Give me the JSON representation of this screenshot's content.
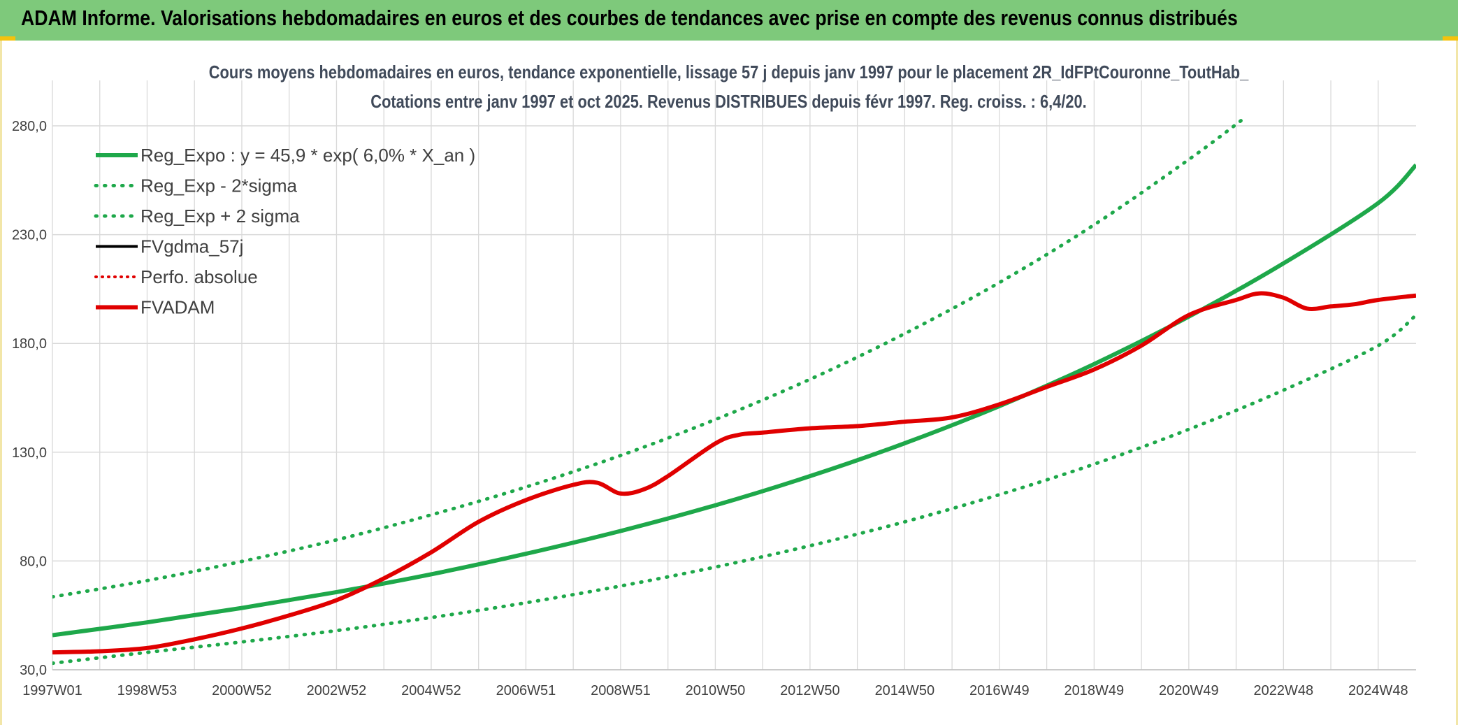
{
  "header": {
    "title": "ADAM Informe. Valorisations hebdomadaires en euros et des courbes de tendances avec prise en compte des revenus connus distribués"
  },
  "colors": {
    "header_bg": "#7ec97b",
    "reg_expo": "#1ea84a",
    "sigma_bands": "#1ea84a",
    "fvgdma": "#000000",
    "perfo_absolue": "#e00000",
    "fvadam": "#e00000",
    "grid": "#d9d9d9"
  },
  "chart_data": {
    "type": "line",
    "title": "Cours moyens hebdomadaires en euros, tendance exponentielle, lissage 57 j depuis janv 1997 pour le placement 2R_IdFPtCouronne_ToutHab_",
    "subtitle": "Cotations entre janv 1997 et oct 2025. Revenus DISTRIBUES depuis févr 1997. Reg. croiss. : 6,4/20.",
    "xlabel": "",
    "ylabel": "",
    "x_unit": "year",
    "xlim": [
      1997.0,
      2025.8
    ],
    "ylim": [
      30,
      280
    ],
    "grid": true,
    "legend_position": "top-left",
    "x_ticks": [
      {
        "x": 1997.0,
        "label": "1997W01"
      },
      {
        "x": 1999.0,
        "label": "1998W53"
      },
      {
        "x": 2001.0,
        "label": "2000W52"
      },
      {
        "x": 2003.0,
        "label": "2002W52"
      },
      {
        "x": 2005.0,
        "label": "2004W52"
      },
      {
        "x": 2007.0,
        "label": "2006W51"
      },
      {
        "x": 2009.0,
        "label": "2008W51"
      },
      {
        "x": 2011.0,
        "label": "2010W50"
      },
      {
        "x": 2013.0,
        "label": "2012W50"
      },
      {
        "x": 2015.0,
        "label": "2014W50"
      },
      {
        "x": 2017.0,
        "label": "2016W49"
      },
      {
        "x": 2019.0,
        "label": "2018W49"
      },
      {
        "x": 2021.0,
        "label": "2020W49"
      },
      {
        "x": 2023.0,
        "label": "2022W48"
      },
      {
        "x": 2025.0,
        "label": "2024W48"
      }
    ],
    "y_ticks": [
      {
        "y": 30,
        "label": "30,0"
      },
      {
        "y": 80,
        "label": "80,0"
      },
      {
        "y": 130,
        "label": "130,0"
      },
      {
        "y": 180,
        "label": "180,0"
      },
      {
        "y": 230,
        "label": "230,0"
      },
      {
        "y": 280,
        "label": "280,0"
      }
    ],
    "series": [
      {
        "name": "Reg_Expo : y = 45,9 * exp( 6,0% *  X_an )",
        "style": "solid-thick",
        "x": [
          1997.0,
          1999.0,
          2001.0,
          2003.0,
          2005.0,
          2007.0,
          2009.0,
          2011.0,
          2013.0,
          2015.0,
          2017.0,
          2019.0,
          2021.0,
          2023.0,
          2025.0,
          2025.8
        ],
        "y": [
          45.9,
          51.8,
          58.4,
          65.7,
          73.9,
          83.3,
          93.8,
          105.6,
          119.0,
          134.1,
          151.2,
          170.5,
          192.3,
          216.8,
          244.5,
          262.0
        ]
      },
      {
        "name": "Reg_Exp - 2*sigma",
        "style": "dotted",
        "x": [
          1997.0,
          1999.0,
          2001.0,
          2003.0,
          2005.0,
          2007.0,
          2009.0,
          2011.0,
          2013.0,
          2015.0,
          2017.0,
          2019.0,
          2021.0,
          2023.0,
          2025.0,
          2025.8
        ],
        "y": [
          33.0,
          38.0,
          42.8,
          48.0,
          54.0,
          60.8,
          68.5,
          77.2,
          87.0,
          98.0,
          110.5,
          124.5,
          140.5,
          158.5,
          179.0,
          193.0
        ]
      },
      {
        "name": "Reg_Exp + 2 sigma",
        "style": "dotted",
        "x": [
          1997.0,
          1999.0,
          2001.0,
          2003.0,
          2005.0,
          2007.0,
          2009.0,
          2011.0,
          2013.0,
          2015.0,
          2017.0,
          2019.0,
          2021.0,
          2022.2
        ],
        "y": [
          63.5,
          71.0,
          79.8,
          89.7,
          101.2,
          114.0,
          128.5,
          145.0,
          163.5,
          184.5,
          208.0,
          234.5,
          264.5,
          284.0
        ]
      },
      {
        "name": "FVgdma_57j",
        "style": "solid",
        "x": [],
        "y": []
      },
      {
        "name": "Perfo. absolue",
        "style": "dotted-red",
        "x": [],
        "y": []
      },
      {
        "name": "FVADAM",
        "style": "solid-thick-red",
        "x": [
          1997.0,
          1998.0,
          1999.0,
          2000.0,
          2001.0,
          2002.0,
          2003.0,
          2004.0,
          2005.0,
          2006.0,
          2007.0,
          2008.0,
          2008.5,
          2009.0,
          2009.5,
          2010.0,
          2011.0,
          2011.5,
          2012.0,
          2013.0,
          2014.0,
          2015.0,
          2016.0,
          2017.0,
          2018.0,
          2019.0,
          2020.0,
          2021.0,
          2022.0,
          2022.5,
          2023.0,
          2023.5,
          2024.0,
          2024.5,
          2025.0,
          2025.8
        ],
        "y": [
          38.0,
          38.5,
          40.0,
          44.0,
          49.0,
          55.0,
          62.0,
          72.0,
          84.0,
          98.0,
          108.0,
          115.0,
          116.0,
          111.0,
          113.0,
          119.0,
          134.0,
          138.0,
          139.0,
          141.0,
          142.0,
          144.0,
          146.0,
          152.0,
          160.0,
          168.0,
          179.0,
          193.0,
          200.0,
          203.0,
          201.0,
          196.0,
          197.0,
          198.0,
          200.0,
          202.0
        ]
      }
    ]
  }
}
